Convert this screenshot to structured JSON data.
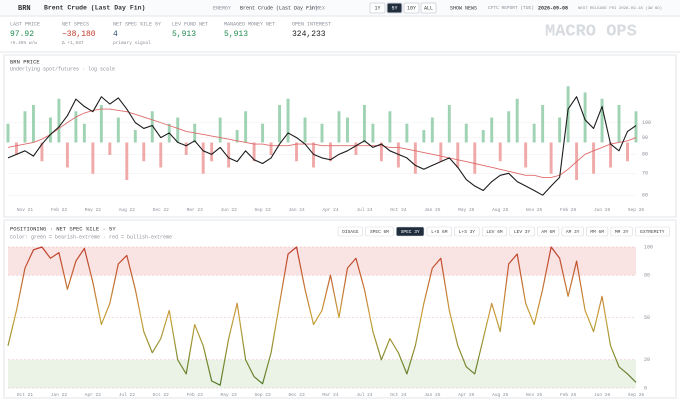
{
  "header": {
    "ticker": "BRN",
    "name": "Brent Crude (Last Day Fin)",
    "sector": "ENERGY",
    "contract": "Brent Crude (Last Day Fin)",
    "exchange": "NYMEX",
    "ranges": [
      "1Y",
      "5Y",
      "10Y",
      "ALL"
    ],
    "active_range": "5Y",
    "news": "SHOW NEWS",
    "report_label": "CFTC REPORT (TUE)",
    "report_date": "2026-09-08",
    "next_release": "NEXT RELEASE FRI 2026-09-18 (3W 6D)",
    "brand": "MACRO OPS"
  },
  "stats": [
    {
      "label": "LAST PRICE",
      "value": "97.92",
      "sub": "+5.45% w/w",
      "color": "#1f8a4c"
    },
    {
      "label": "NET SPECS",
      "value": "−38,180",
      "sub": "Δ +1,587",
      "color": "#c0392b"
    },
    {
      "label": "NET SPEC %ILE 5Y",
      "value": "4",
      "sub": "primary signal",
      "color": "#2c4a6e"
    },
    {
      "label": "LEV FUND NET",
      "value": "5,913",
      "color": "#1f8a4c"
    },
    {
      "label": "MANAGED MONEY NET",
      "value": "5,913",
      "color": "#1f8a4c"
    },
    {
      "label": "OPEN INTEREST",
      "value": "324,233",
      "color": "#222"
    }
  ],
  "chart_data": [
    {
      "type": "line",
      "title": "BRN PRICE",
      "subtitle": "Underlying spot/futures · log scale",
      "log_scale": true,
      "categories": [
        null,
        null,
        "Nov 21",
        null,
        null,
        null,
        "Feb 22",
        null,
        null,
        null,
        "May 22",
        null,
        null,
        null,
        "Aug 22",
        null,
        null,
        null,
        "Dec 22",
        null,
        null,
        null,
        "Mar 23",
        null,
        null,
        null,
        "Jun 23",
        null,
        null,
        null,
        "Sep 23",
        null,
        null,
        null,
        "Jan 24",
        null,
        null,
        null,
        "Apr 24",
        null,
        null,
        null,
        "Jul 24",
        null,
        null,
        null,
        "Oct 24",
        null,
        null,
        null,
        "Jan 25",
        null,
        null,
        null,
        "May 25",
        null,
        null,
        null,
        "Aug 25",
        null,
        null,
        null,
        "Nov 25",
        null,
        null,
        null,
        "Feb 26",
        null,
        null,
        null,
        "Jun 26",
        null,
        null,
        null,
        "Sep 26"
      ],
      "series": [
        {
          "type": "bar",
          "axis": "y2",
          "color_pos": "#9fd3b3",
          "color_neg": "#f0a9a9",
          "values": [
            0.3,
            -0.2,
            0.5,
            0.6,
            -0.3,
            0.4,
            0.7,
            -0.4,
            0.5,
            0.3,
            -0.5,
            0.6,
            -0.2,
            0.4,
            -0.6,
            0.2,
            -0.3,
            0.5,
            -0.4,
            0.3,
            0.4,
            -0.2,
            0.3,
            -0.5,
            -0.3,
            0.4,
            -0.4,
            0.2,
            0.5,
            -0.3,
            0.3,
            -0.2,
            0.6,
            0.7,
            -0.3,
            0.4,
            -0.4,
            0.3,
            -0.3,
            0.5,
            0.4,
            -0.2,
            0.6,
            0.3,
            -0.3,
            0.5,
            -0.4,
            0.3,
            -0.5,
            0.2,
            0.4,
            -0.3,
            0.6,
            -0.4,
            0.3,
            -0.5,
            0.2,
            0.4,
            -0.3,
            0.5,
            0.7,
            -0.4,
            0.3,
            0.6,
            -0.5,
            0.4,
            0.9,
            -0.6,
            0.8,
            -0.5,
            0.7,
            -0.4,
            0.6,
            -0.3,
            0.5
          ]
        },
        {
          "type": "line",
          "color": "#e06c6c",
          "values": [
            84,
            85,
            86,
            87,
            89,
            92,
            96,
            100,
            104,
            107,
            109,
            110,
            110,
            109,
            108,
            106,
            104,
            102,
            100,
            98,
            96,
            94,
            93,
            92,
            91,
            90,
            89,
            88,
            87,
            86,
            86,
            85,
            85,
            85,
            86,
            86,
            86,
            85,
            85,
            85,
            85,
            85,
            85,
            85,
            85,
            84,
            84,
            83,
            82,
            81,
            80,
            79,
            78,
            77,
            76,
            75,
            74,
            73,
            72,
            71,
            70,
            69,
            69,
            68,
            68,
            69,
            72,
            76,
            80,
            82,
            84,
            86,
            87,
            88,
            90
          ]
        },
        {
          "type": "line",
          "color": "#1c1c1c",
          "values": [
            78,
            80,
            82,
            79,
            86,
            92,
            97,
            105,
            118,
            112,
            108,
            120,
            114,
            119,
            110,
            100,
            96,
            98,
            90,
            93,
            87,
            85,
            88,
            82,
            80,
            84,
            78,
            76,
            82,
            77,
            75,
            78,
            86,
            93,
            90,
            86,
            80,
            78,
            77,
            80,
            82,
            85,
            88,
            84,
            86,
            82,
            80,
            78,
            74,
            72,
            74,
            76,
            78,
            73,
            67,
            64,
            62,
            66,
            69,
            70,
            66,
            64,
            62,
            60,
            64,
            68,
            110,
            120,
            102,
            96,
            112,
            86,
            82,
            94,
            97.92
          ]
        }
      ],
      "ylim": [
        56,
        135
      ],
      "yticks": [
        60,
        70,
        80,
        90,
        100
      ],
      "y2lim": [
        -1,
        1
      ],
      "grid": true
    },
    {
      "type": "line",
      "title": "POSITIONING · NET SPEC %ILE · 5Y",
      "subtitle": "Color: green = bearish-extreme · red = bullish-extreme",
      "buttons": [
        "DISAGG",
        "SPEC 6M",
        "SPEC 3Y",
        "L+S 6M",
        "L+S 3Y",
        "LEV 6M",
        "LEV 3Y",
        "AM 6M",
        "AM 3Y",
        "MM 6M",
        "MM 3Y",
        "EXTREMITY"
      ],
      "active_button": "SPEC 3Y",
      "categories": [
        null,
        null,
        "Oct 21",
        null,
        null,
        null,
        "Jan 22",
        null,
        null,
        null,
        "Apr 22",
        null,
        null,
        null,
        "Jul 22",
        null,
        null,
        null,
        "Oct 22",
        null,
        null,
        null,
        "Feb 23",
        null,
        null,
        null,
        "May 23",
        null,
        null,
        null,
        "Sep 23",
        null,
        null,
        null,
        "Dec 23",
        null,
        null,
        null,
        "Mar 24",
        null,
        null,
        null,
        "Jul 24",
        null,
        null,
        null,
        "Oct 24",
        null,
        null,
        null,
        "Jan 25",
        null,
        null,
        null,
        "Apr 25",
        null,
        null,
        null,
        "Aug 25",
        null,
        null,
        null,
        "Nov 25",
        null,
        null,
        null,
        "Feb 26",
        null,
        null,
        null,
        "Jun 26",
        null,
        null,
        null,
        "Sep 26"
      ],
      "values": [
        30,
        55,
        85,
        98,
        100,
        92,
        96,
        70,
        90,
        99,
        75,
        45,
        60,
        88,
        94,
        70,
        40,
        25,
        35,
        55,
        20,
        10,
        45,
        30,
        5,
        2,
        35,
        60,
        20,
        8,
        3,
        25,
        60,
        95,
        100,
        70,
        45,
        55,
        80,
        50,
        85,
        92,
        70,
        40,
        20,
        35,
        25,
        10,
        30,
        60,
        85,
        92,
        55,
        30,
        15,
        10,
        35,
        60,
        40,
        88,
        95,
        60,
        45,
        70,
        100,
        92,
        65,
        90,
        55,
        40,
        65,
        30,
        15,
        10,
        4
      ],
      "color_low": "#4f7a2a",
      "color_mid": "#c9a23a",
      "color_high": "#c0392b",
      "bands": [
        {
          "from": 80,
          "to": 100,
          "color": "#f7dcdc"
        },
        {
          "from": 0,
          "to": 20,
          "color": "#e6efe0"
        }
      ],
      "ylim": [
        0,
        100
      ],
      "yticks": [
        0,
        20,
        50,
        80,
        100
      ],
      "grid": true
    }
  ]
}
